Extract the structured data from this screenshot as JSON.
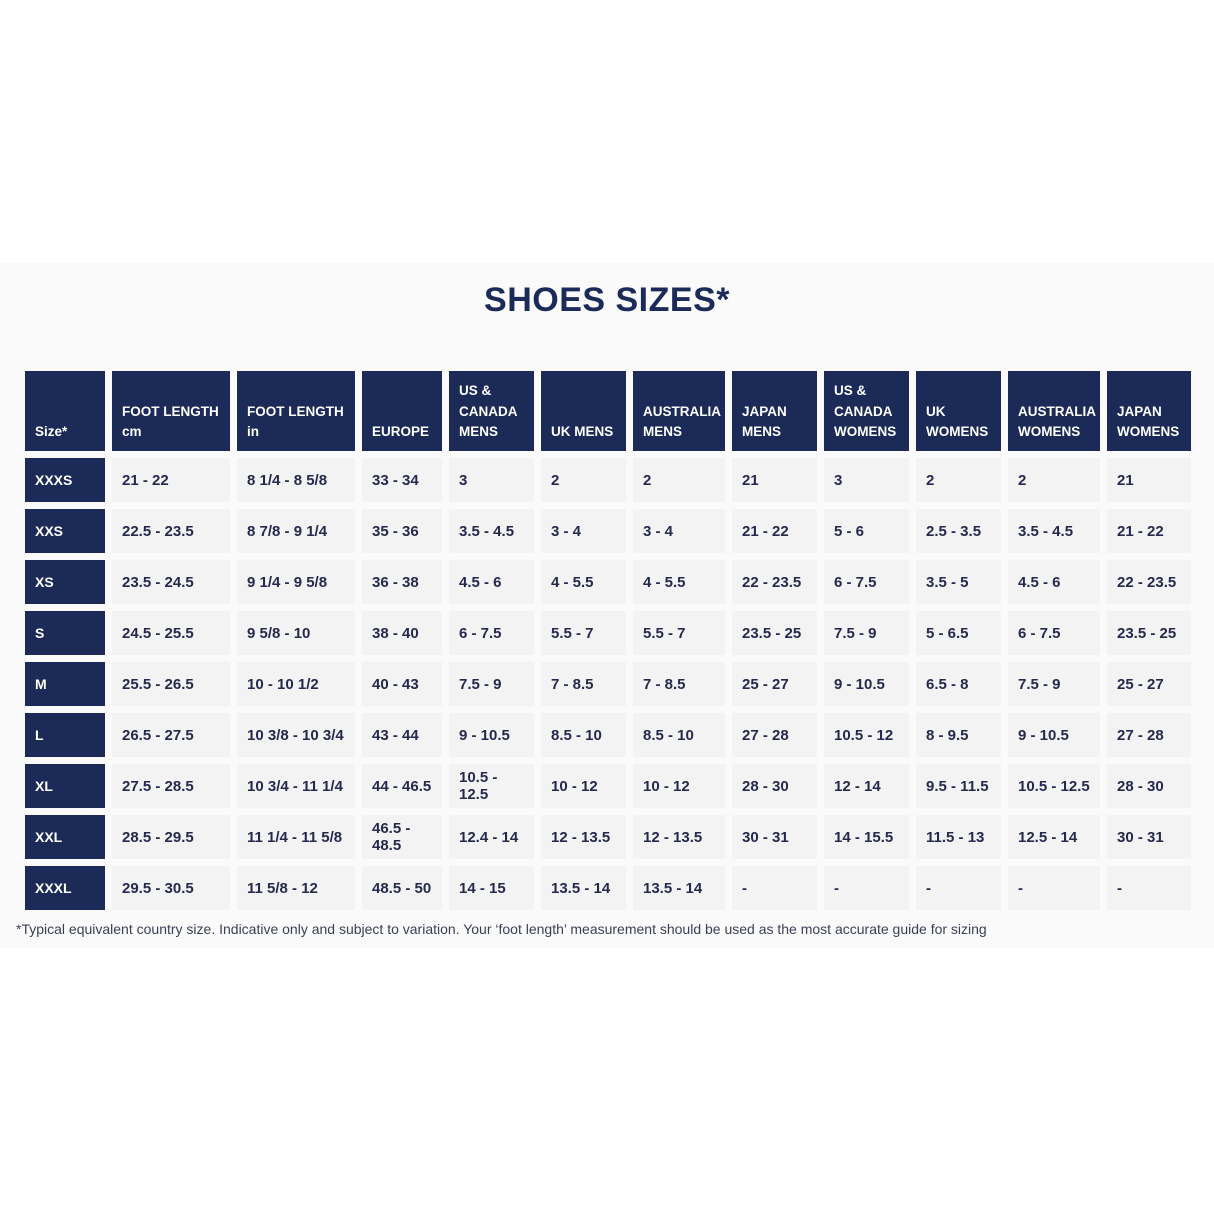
{
  "page": {
    "title": "SHOES SIZES*",
    "footnote": "*Typical equivalent country size. Indicative only and subject to variation. Your ‘foot length’ measurement should be used as the most accurate guide for sizing"
  },
  "colors": {
    "header_navy": "#1b2a57",
    "cell_background": "#f3f3f3",
    "section_background": "#fafafa",
    "page_background": "#ffffff",
    "data_text": "#252a4d"
  },
  "chart_data": {
    "type": "table",
    "title": "SHOES SIZES*",
    "columns": [
      "Size*",
      "FOOT LENGTH\ncm",
      "FOOT LENGTH\nin",
      "EUROPE",
      "US &\nCANADA\nMENS",
      "UK MENS",
      "AUSTRALIA\nMENS",
      "JAPAN\nMENS",
      "US &\nCANADA\nWOMENS",
      "UK\nWOMENS",
      "AUSTRALIA\nWOMENS",
      "JAPAN\nWOMENS"
    ],
    "rows": [
      [
        "XXXS",
        "21 - 22",
        "8 1/4 - 8 5/8",
        "33 - 34",
        "3",
        "2",
        "2",
        "21",
        "3",
        "2",
        "2",
        "21"
      ],
      [
        "XXS",
        "22.5 - 23.5",
        "8 7/8 - 9 1/4",
        "35 - 36",
        "3.5 - 4.5",
        "3 - 4",
        "3 - 4",
        "21 - 22",
        "5 - 6",
        "2.5 - 3.5",
        "3.5 - 4.5",
        "21 - 22"
      ],
      [
        "XS",
        "23.5 - 24.5",
        "9 1/4 - 9 5/8",
        "36 - 38",
        "4.5 - 6",
        "4 - 5.5",
        "4 - 5.5",
        "22 - 23.5",
        "6 - 7.5",
        "3.5 - 5",
        "4.5 - 6",
        "22 - 23.5"
      ],
      [
        "S",
        "24.5 - 25.5",
        "9 5/8 - 10",
        "38 - 40",
        "6 - 7.5",
        "5.5 - 7",
        "5.5 - 7",
        "23.5 - 25",
        "7.5 - 9",
        "5 - 6.5",
        "6 - 7.5",
        "23.5 - 25"
      ],
      [
        "M",
        "25.5 - 26.5",
        "10 - 10 1/2",
        "40 - 43",
        "7.5 - 9",
        "7 - 8.5",
        "7 - 8.5",
        "25 - 27",
        "9 - 10.5",
        "6.5 - 8",
        "7.5 - 9",
        "25 - 27"
      ],
      [
        "L",
        "26.5 - 27.5",
        "10 3/8 - 10 3/4",
        "43 - 44",
        "9 - 10.5",
        "8.5 - 10",
        "8.5 - 10",
        "27 - 28",
        "10.5 - 12",
        "8 - 9.5",
        "9 - 10.5",
        "27 - 28"
      ],
      [
        "XL",
        "27.5 - 28.5",
        "10 3/4 - 11 1/4",
        "44 - 46.5",
        "10.5 - 12.5",
        "10 - 12",
        "10 - 12",
        "28 - 30",
        "12 - 14",
        "9.5 - 11.5",
        "10.5 - 12.5",
        "28 - 30"
      ],
      [
        "XXL",
        "28.5 - 29.5",
        "11 1/4 - 11 5/8",
        "46.5 - 48.5",
        "12.4 - 14",
        "12 - 13.5",
        "12 - 13.5",
        "30 - 31",
        "14 - 15.5",
        "11.5 - 13",
        "12.5 - 14",
        "30 - 31"
      ],
      [
        "XXXL",
        "29.5 - 30.5",
        "11 5/8 - 12",
        "48.5 - 50",
        "14 - 15",
        "13.5 - 14",
        "13.5 - 14",
        "-",
        "-",
        "-",
        "-",
        "-"
      ]
    ]
  }
}
